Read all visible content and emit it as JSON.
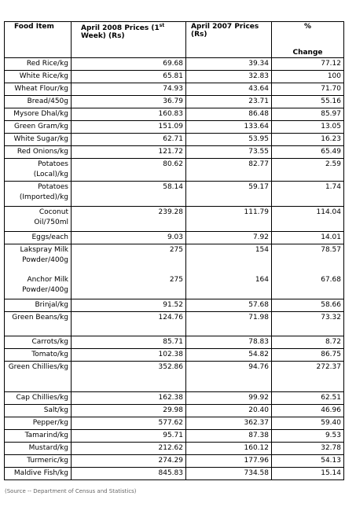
{
  "table": {
    "header": {
      "food_item": "Food Item",
      "april_2008": {
        "before": "April 2008 Prices (1",
        "superscript": "st",
        "after": " Week) (Rs)"
      },
      "april_2007": "April 2007 Prices (Rs)",
      "percent": "%",
      "change": "Change"
    },
    "rows": [
      [
        "Red Rice/kg",
        "69.68",
        "39.34",
        "77.12"
      ],
      [
        "White Rice/kg",
        "65.81",
        "32.83",
        "100"
      ],
      [
        "Wheat Flour/kg",
        "74.93",
        "43.64",
        "71.70"
      ],
      [
        "Bread/450g",
        "36.79",
        "23.71",
        "55.16"
      ],
      [
        "Mysore Dhal/kg",
        "160.83",
        "86.48",
        "85.97"
      ],
      [
        "Green Gram/kg",
        "151.09",
        "133.64",
        "13.05"
      ],
      [
        "White Sugar/kg",
        "62.71",
        "53.95",
        "16.23"
      ],
      [
        "Red Onions/kg",
        "121.72",
        "73.55",
        "65.49"
      ],
      [
        "Potatoes (Local)/kg",
        "80.62",
        "82.77",
        "2.59"
      ],
      [
        "Potatoes (Imported)/kg",
        "58.14",
        "59.17",
        "1.74"
      ],
      [
        "Coconut Oil/750ml",
        "239.28",
        "111.79",
        "114.04"
      ],
      [
        "Eggs/each",
        "9.03",
        "7.92",
        "14.01"
      ],
      [
        "Lakspray Milk Powder/400g",
        "275",
        "154",
        "78.57"
      ],
      [
        "Anchor Milk Powder/400g",
        "275",
        "164",
        "67.68"
      ],
      [
        "Brinjal/kg",
        "91.52",
        "57.68",
        "58.66"
      ],
      [
        "Green Beans/kg",
        "124.76",
        "71.98",
        "73.32"
      ],
      [
        "Carrots/kg",
        "85.71",
        "78.83",
        "8.72"
      ],
      [
        "Tomato/kg",
        "102.38",
        "54.82",
        "86.75"
      ],
      [
        "Green Chillies/kg",
        "352.86",
        "94.76",
        "272.37"
      ],
      [
        "Cap Chillies/kg",
        "162.38",
        "99.92",
        "62.51"
      ],
      [
        "Salt/kg",
        "29.98",
        "20.40",
        "46.96"
      ],
      [
        "Pepper/kg",
        "577.62",
        "362.37",
        "59.40"
      ],
      [
        "Tamarind/kg",
        "95.71",
        "87.38",
        "9.53"
      ],
      [
        "Mustard/kg",
        "212.62",
        "160.12",
        "32.78"
      ],
      [
        "Turmeric/kg",
        "274.29",
        "177.96",
        "54.13"
      ],
      [
        "Maldive Fish/kg",
        "845.83",
        "734.58",
        "15.14"
      ]
    ]
  },
  "source": "(Source -- Department of Census and Statistics)"
}
